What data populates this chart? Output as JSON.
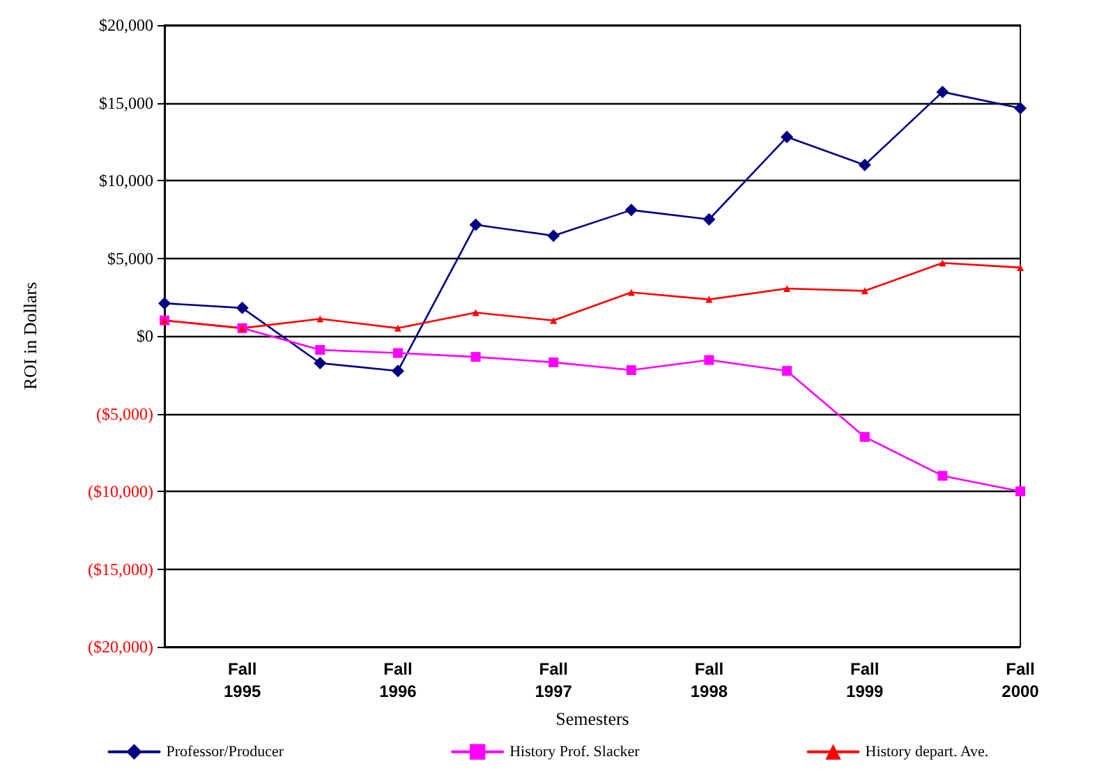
{
  "chart_data": {
    "type": "line",
    "xlabel": "Semesters",
    "ylabel": "ROI in Dollars",
    "categories": [
      null,
      "Fall 1995",
      null,
      "Fall 1996",
      null,
      "Fall 1997",
      null,
      "Fall 1998",
      null,
      "Fall 1999",
      null,
      "Fall 2000"
    ],
    "series": [
      {
        "name": "Professor/Producer",
        "color": "#000080",
        "marker": "diamond",
        "values": [
          2100,
          1800,
          -1750,
          -2250,
          7150,
          6450,
          8100,
          7500,
          12800,
          11000,
          15700,
          14650
        ]
      },
      {
        "name": "History Prof. Slacker",
        "color": "#ff00ff",
        "marker": "square",
        "values": [
          1000,
          500,
          -900,
          -1100,
          -1350,
          -1700,
          -2200,
          -1550,
          -2250,
          -6500,
          -9000,
          -10000
        ]
      },
      {
        "name": "History depart. Ave.",
        "color": "#ff0000",
        "marker": "triangle",
        "values": [
          1000,
          500,
          1100,
          500,
          1500,
          1000,
          2800,
          2350,
          3050,
          2900,
          4700,
          4400
        ]
      }
    ],
    "ylim": [
      -20000,
      20000
    ],
    "yticks": [
      {
        "value": -20000,
        "label": "($20,000)"
      },
      {
        "value": -15000,
        "label": "($15,000)"
      },
      {
        "value": -10000,
        "label": "($10,000)"
      },
      {
        "value": -5000,
        "label": "($5,000)"
      },
      {
        "value": 0,
        "label": "$0"
      },
      {
        "value": 5000,
        "label": "$5,000"
      },
      {
        "value": 10000,
        "label": "$10,000"
      },
      {
        "value": 15000,
        "label": "$15,000"
      },
      {
        "value": 20000,
        "label": "$20,000"
      }
    ],
    "grid": "y",
    "legend": "bottom",
    "line_style": "solid"
  }
}
